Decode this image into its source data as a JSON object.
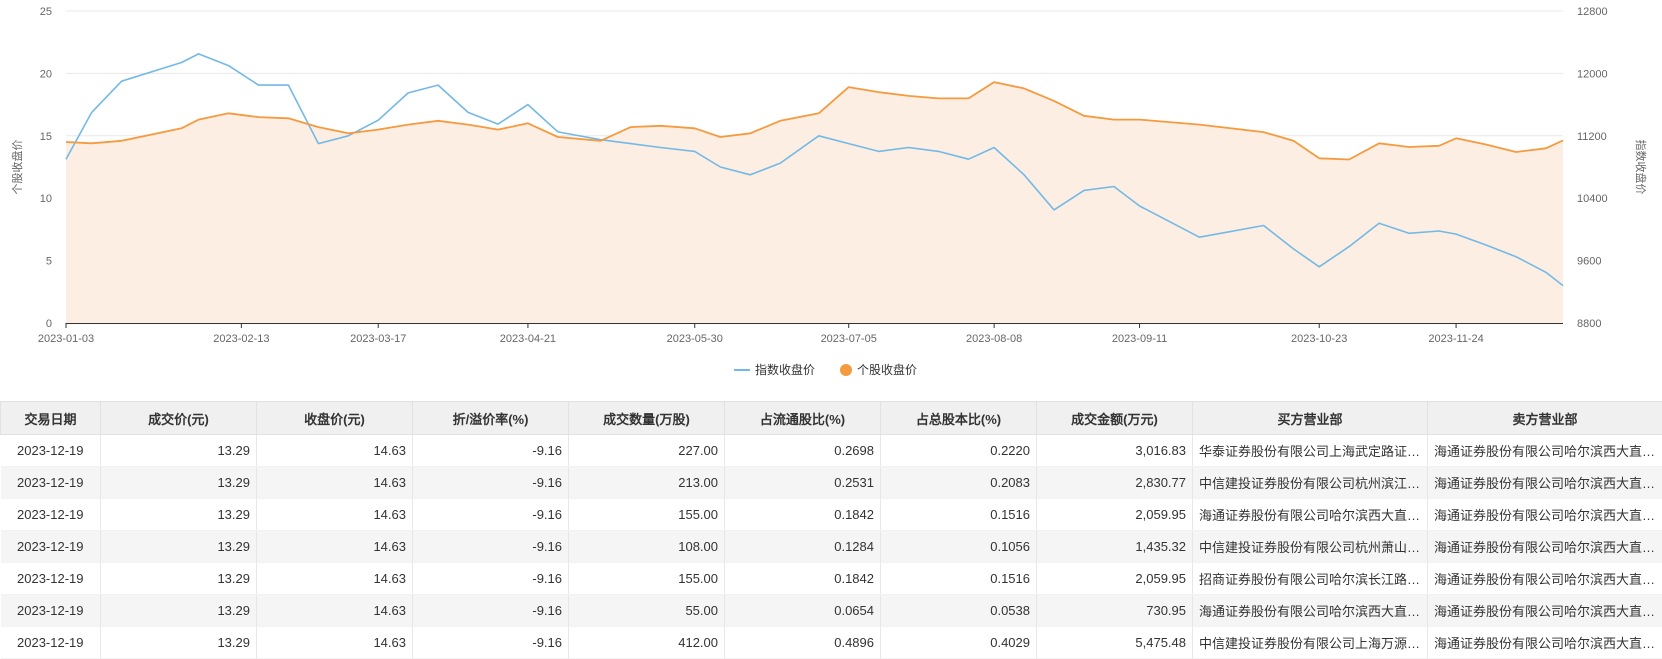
{
  "chart_data": {
    "type": "line",
    "xlabel": "",
    "y_left": {
      "label": "个股收盘价",
      "range": [
        0,
        25
      ],
      "ticks": [
        0,
        5,
        10,
        15,
        20,
        25
      ]
    },
    "y_right": {
      "label": "指数收盘价",
      "range": [
        8800,
        12800
      ],
      "ticks": [
        8800,
        9600,
        10400,
        11200,
        12000,
        12800
      ]
    },
    "x_tick_labels": [
      "2023-01-03",
      "2023-02-13",
      "2023-03-17",
      "2023-04-21",
      "2023-05-30",
      "2023-07-05",
      "2023-08-08",
      "2023-09-11",
      "2023-10-23",
      "2023-11-24"
    ],
    "legend_position": "bottom",
    "grid": "horizontal",
    "series": [
      {
        "name": "指数收盘价",
        "axis": "right",
        "color": "#73b9e6",
        "x": [
          "2023-01-03",
          "2023-01-09",
          "2023-01-16",
          "2023-01-30",
          "2023-02-03",
          "2023-02-10",
          "2023-02-17",
          "2023-02-24",
          "2023-03-03",
          "2023-03-10",
          "2023-03-17",
          "2023-03-24",
          "2023-03-31",
          "2023-04-07",
          "2023-04-14",
          "2023-04-21",
          "2023-04-28",
          "2023-05-08",
          "2023-05-15",
          "2023-05-22",
          "2023-05-30",
          "2023-06-05",
          "2023-06-12",
          "2023-06-19",
          "2023-06-28",
          "2023-07-05",
          "2023-07-12",
          "2023-07-19",
          "2023-07-26",
          "2023-08-02",
          "2023-08-08",
          "2023-08-15",
          "2023-08-22",
          "2023-08-29",
          "2023-09-05",
          "2023-09-11",
          "2023-09-18",
          "2023-09-25",
          "2023-10-10",
          "2023-10-17",
          "2023-10-23",
          "2023-10-30",
          "2023-11-06",
          "2023-11-13",
          "2023-11-20",
          "2023-11-24",
          "2023-12-01",
          "2023-12-08",
          "2023-12-15",
          "2023-12-19"
        ],
        "values": [
          10900,
          11500,
          11900,
          12140,
          12250,
          12100,
          11850,
          11850,
          11100,
          11200,
          11400,
          11750,
          11850,
          11500,
          11350,
          11600,
          11250,
          11150,
          11100,
          11050,
          11000,
          10800,
          10700,
          10850,
          11200,
          11100,
          11000,
          11050,
          11000,
          10900,
          11050,
          10700,
          10250,
          10500,
          10550,
          10300,
          10100,
          9900,
          10050,
          9750,
          9520,
          9780,
          10080,
          9950,
          9980,
          9940,
          9800,
          9650,
          9450,
          9280
        ]
      },
      {
        "name": "个股收盘价",
        "axis": "left",
        "color": "#f59a3e",
        "x": [
          "2023-01-03",
          "2023-01-09",
          "2023-01-16",
          "2023-01-30",
          "2023-02-03",
          "2023-02-10",
          "2023-02-17",
          "2023-02-24",
          "2023-03-03",
          "2023-03-10",
          "2023-03-17",
          "2023-03-24",
          "2023-03-31",
          "2023-04-07",
          "2023-04-14",
          "2023-04-21",
          "2023-04-28",
          "2023-05-08",
          "2023-05-15",
          "2023-05-22",
          "2023-05-30",
          "2023-06-05",
          "2023-06-12",
          "2023-06-19",
          "2023-06-28",
          "2023-07-05",
          "2023-07-12",
          "2023-07-19",
          "2023-07-26",
          "2023-08-02",
          "2023-08-08",
          "2023-08-15",
          "2023-08-22",
          "2023-08-29",
          "2023-09-05",
          "2023-09-11",
          "2023-09-18",
          "2023-09-25",
          "2023-10-10",
          "2023-10-17",
          "2023-10-23",
          "2023-10-30",
          "2023-11-06",
          "2023-11-13",
          "2023-11-20",
          "2023-11-24",
          "2023-12-01",
          "2023-12-08",
          "2023-12-15",
          "2023-12-19"
        ],
        "values": [
          14.5,
          14.4,
          14.6,
          15.6,
          16.3,
          16.8,
          16.5,
          16.4,
          15.7,
          15.2,
          15.5,
          15.9,
          16.2,
          15.9,
          15.5,
          16.0,
          14.9,
          14.6,
          15.7,
          15.8,
          15.6,
          14.9,
          15.2,
          16.2,
          16.8,
          18.9,
          18.5,
          18.2,
          18.0,
          18.0,
          19.3,
          18.8,
          17.8,
          16.6,
          16.3,
          16.3,
          16.1,
          15.9,
          15.3,
          14.6,
          13.2,
          13.1,
          14.4,
          14.1,
          14.2,
          14.8,
          14.3,
          13.7,
          14.0,
          14.63
        ]
      }
    ]
  },
  "table": {
    "headers": [
      "交易日期",
      "成交价(元)",
      "收盘价(元)",
      "折/溢价率(%)",
      "成交数量(万股)",
      "占流通股比(%)",
      "占总股本比(%)",
      "成交金额(万元)",
      "买方营业部",
      "卖方营业部"
    ],
    "rows": [
      [
        "2023-12-19",
        "13.29",
        "14.63",
        "-9.16",
        "227.00",
        "0.2698",
        "0.2220",
        "3,016.83",
        "华泰证券股份有限公司上海武定路证券营业部",
        "海通证券股份有限公司哈尔滨西大直街证券营业部"
      ],
      [
        "2023-12-19",
        "13.29",
        "14.63",
        "-9.16",
        "213.00",
        "0.2531",
        "0.2083",
        "2,830.77",
        "中信建投证券股份有限公司杭州滨江证券营业部",
        "海通证券股份有限公司哈尔滨西大直街证券营业部"
      ],
      [
        "2023-12-19",
        "13.29",
        "14.63",
        "-9.16",
        "155.00",
        "0.1842",
        "0.1516",
        "2,059.95",
        "海通证券股份有限公司哈尔滨西大直街证券营业部",
        "海通证券股份有限公司哈尔滨西大直街证券营业部"
      ],
      [
        "2023-12-19",
        "13.29",
        "14.63",
        "-9.16",
        "108.00",
        "0.1284",
        "0.1056",
        "1,435.32",
        "中信建投证券股份有限公司杭州萧山证券营业部",
        "海通证券股份有限公司哈尔滨西大直街证券营业部"
      ],
      [
        "2023-12-19",
        "13.29",
        "14.63",
        "-9.16",
        "155.00",
        "0.1842",
        "0.1516",
        "2,059.95",
        "招商证券股份有限公司哈尔滨长江路证券营业部",
        "海通证券股份有限公司哈尔滨西大直街证券营业部"
      ],
      [
        "2023-12-19",
        "13.29",
        "14.63",
        "-9.16",
        "55.00",
        "0.0654",
        "0.0538",
        "730.95",
        "海通证券股份有限公司哈尔滨西大直街证券营业部",
        "海通证券股份有限公司哈尔滨西大直街证券营业部"
      ],
      [
        "2023-12-19",
        "13.29",
        "14.63",
        "-9.16",
        "412.00",
        "0.4896",
        "0.4029",
        "5,475.48",
        "中信建投证券股份有限公司上海万源路证券营业部",
        "海通证券股份有限公司哈尔滨西大直街证券营业部"
      ]
    ]
  }
}
